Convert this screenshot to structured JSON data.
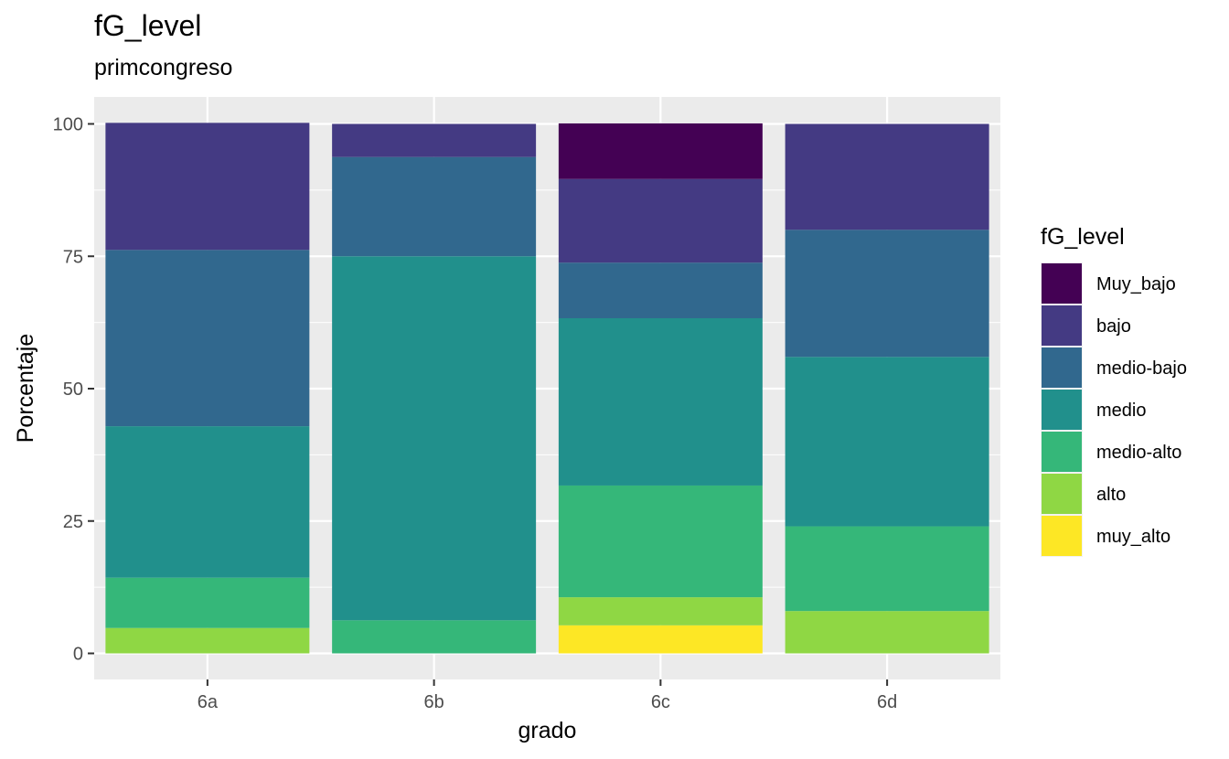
{
  "title": "fG_level",
  "subtitle": "primcongreso",
  "chart_data": {
    "type": "bar",
    "stacked": true,
    "xlabel": "grado",
    "ylabel": "Porcentaje",
    "ylim": [
      0,
      100
    ],
    "yticks": [
      0,
      25,
      50,
      75,
      100
    ],
    "grid": true,
    "legend_position": "right",
    "legend_title": "fG_level",
    "categories": [
      "6a",
      "6b",
      "6c",
      "6d"
    ],
    "series": [
      {
        "name": "Muy_bajo",
        "color": "#440154",
        "values": [
          0,
          0,
          10.5,
          0
        ]
      },
      {
        "name": "bajo",
        "color": "#443A83",
        "values": [
          24,
          6.25,
          15.8,
          20
        ]
      },
      {
        "name": "medio-bajo",
        "color": "#31688E",
        "values": [
          33.3,
          18.75,
          10.5,
          24
        ]
      },
      {
        "name": "medio",
        "color": "#21908C",
        "values": [
          28.6,
          68.75,
          31.6,
          32
        ]
      },
      {
        "name": "medio-alto",
        "color": "#35B779",
        "values": [
          9.5,
          6.25,
          21.1,
          16
        ]
      },
      {
        "name": "alto",
        "color": "#8FD744",
        "values": [
          4.8,
          0,
          5.3,
          8
        ]
      },
      {
        "name": "muy_alto",
        "color": "#FDE725",
        "values": [
          0,
          0,
          5.3,
          0
        ]
      }
    ]
  }
}
